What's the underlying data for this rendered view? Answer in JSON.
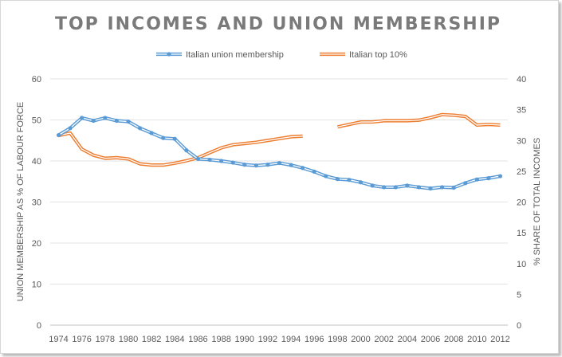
{
  "chart_data": {
    "type": "line",
    "title": "TOP INCOMES AND UNION MEMBERSHIP",
    "ylabel_left": "UNION MEMBERSHIP AS % OF LABOUR FORCE",
    "ylabel_right": "% SHARE OF TOTAL INCOMES",
    "ylim_left": [
      0,
      60
    ],
    "ylim_right": [
      0,
      40
    ],
    "yticks_left": [
      0,
      10,
      20,
      30,
      40,
      50,
      60
    ],
    "yticks_right": [
      0,
      5,
      10,
      15,
      20,
      25,
      30,
      35,
      40
    ],
    "x_range": [
      1974,
      2012
    ],
    "xticks": [
      1974,
      1976,
      1978,
      1980,
      1982,
      1984,
      1986,
      1988,
      1990,
      1992,
      1994,
      1996,
      1998,
      2000,
      2002,
      2004,
      2006,
      2008,
      2010,
      2012
    ],
    "legend_position": "top",
    "series": [
      {
        "name": "Italian union membership",
        "axis": "left",
        "color": "#5b9bd5",
        "marker": "circle",
        "points": [
          [
            1974,
            46.3
          ],
          [
            1975,
            48.0
          ],
          [
            1976,
            50.5
          ],
          [
            1977,
            49.8
          ],
          [
            1978,
            50.5
          ],
          [
            1979,
            49.8
          ],
          [
            1980,
            49.6
          ],
          [
            1981,
            48.0
          ],
          [
            1982,
            46.8
          ],
          [
            1983,
            45.6
          ],
          [
            1984,
            45.4
          ],
          [
            1985,
            42.6
          ],
          [
            1986,
            40.5
          ],
          [
            1987,
            40.3
          ],
          [
            1988,
            40.0
          ],
          [
            1989,
            39.6
          ],
          [
            1990,
            39.1
          ],
          [
            1991,
            38.9
          ],
          [
            1992,
            39.1
          ],
          [
            1993,
            39.5
          ],
          [
            1994,
            39.0
          ],
          [
            1995,
            38.3
          ],
          [
            1996,
            37.4
          ],
          [
            1997,
            36.3
          ],
          [
            1998,
            35.6
          ],
          [
            1999,
            35.4
          ],
          [
            2000,
            34.8
          ],
          [
            2001,
            34.0
          ],
          [
            2002,
            33.6
          ],
          [
            2003,
            33.6
          ],
          [
            2004,
            34.0
          ],
          [
            2005,
            33.6
          ],
          [
            2006,
            33.3
          ],
          [
            2007,
            33.6
          ],
          [
            2008,
            33.5
          ],
          [
            2009,
            34.6
          ],
          [
            2010,
            35.5
          ],
          [
            2011,
            35.8
          ],
          [
            2012,
            36.3
          ]
        ]
      },
      {
        "name": "Italian top 10%",
        "axis": "right",
        "color": "#ed7d31",
        "marker": "none",
        "segments": [
          [
            [
              1974,
              30.8
            ],
            [
              1975,
              31.2
            ],
            [
              1976,
              28.6
            ],
            [
              1977,
              27.6
            ],
            [
              1978,
              27.1
            ],
            [
              1979,
              27.2
            ],
            [
              1980,
              27.0
            ],
            [
              1981,
              26.2
            ],
            [
              1982,
              26.0
            ],
            [
              1983,
              26.0
            ],
            [
              1984,
              26.3
            ],
            [
              1985,
              26.7
            ],
            [
              1986,
              27.2
            ],
            [
              1987,
              28.0
            ],
            [
              1988,
              28.8
            ],
            [
              1989,
              29.3
            ],
            [
              1990,
              29.5
            ],
            [
              1991,
              29.7
            ],
            [
              1992,
              30.0
            ],
            [
              1993,
              30.3
            ],
            [
              1994,
              30.6
            ],
            [
              1995,
              30.7
            ]
          ],
          [
            [
              1998,
              32.2
            ],
            [
              1999,
              32.6
            ],
            [
              2000,
              33.0
            ],
            [
              2001,
              33.0
            ],
            [
              2002,
              33.2
            ],
            [
              2003,
              33.2
            ],
            [
              2004,
              33.2
            ],
            [
              2005,
              33.3
            ],
            [
              2006,
              33.7
            ],
            [
              2007,
              34.2
            ],
            [
              2008,
              34.1
            ],
            [
              2009,
              33.9
            ],
            [
              2010,
              32.5
            ],
            [
              2011,
              32.6
            ],
            [
              2012,
              32.5
            ]
          ]
        ]
      }
    ]
  }
}
